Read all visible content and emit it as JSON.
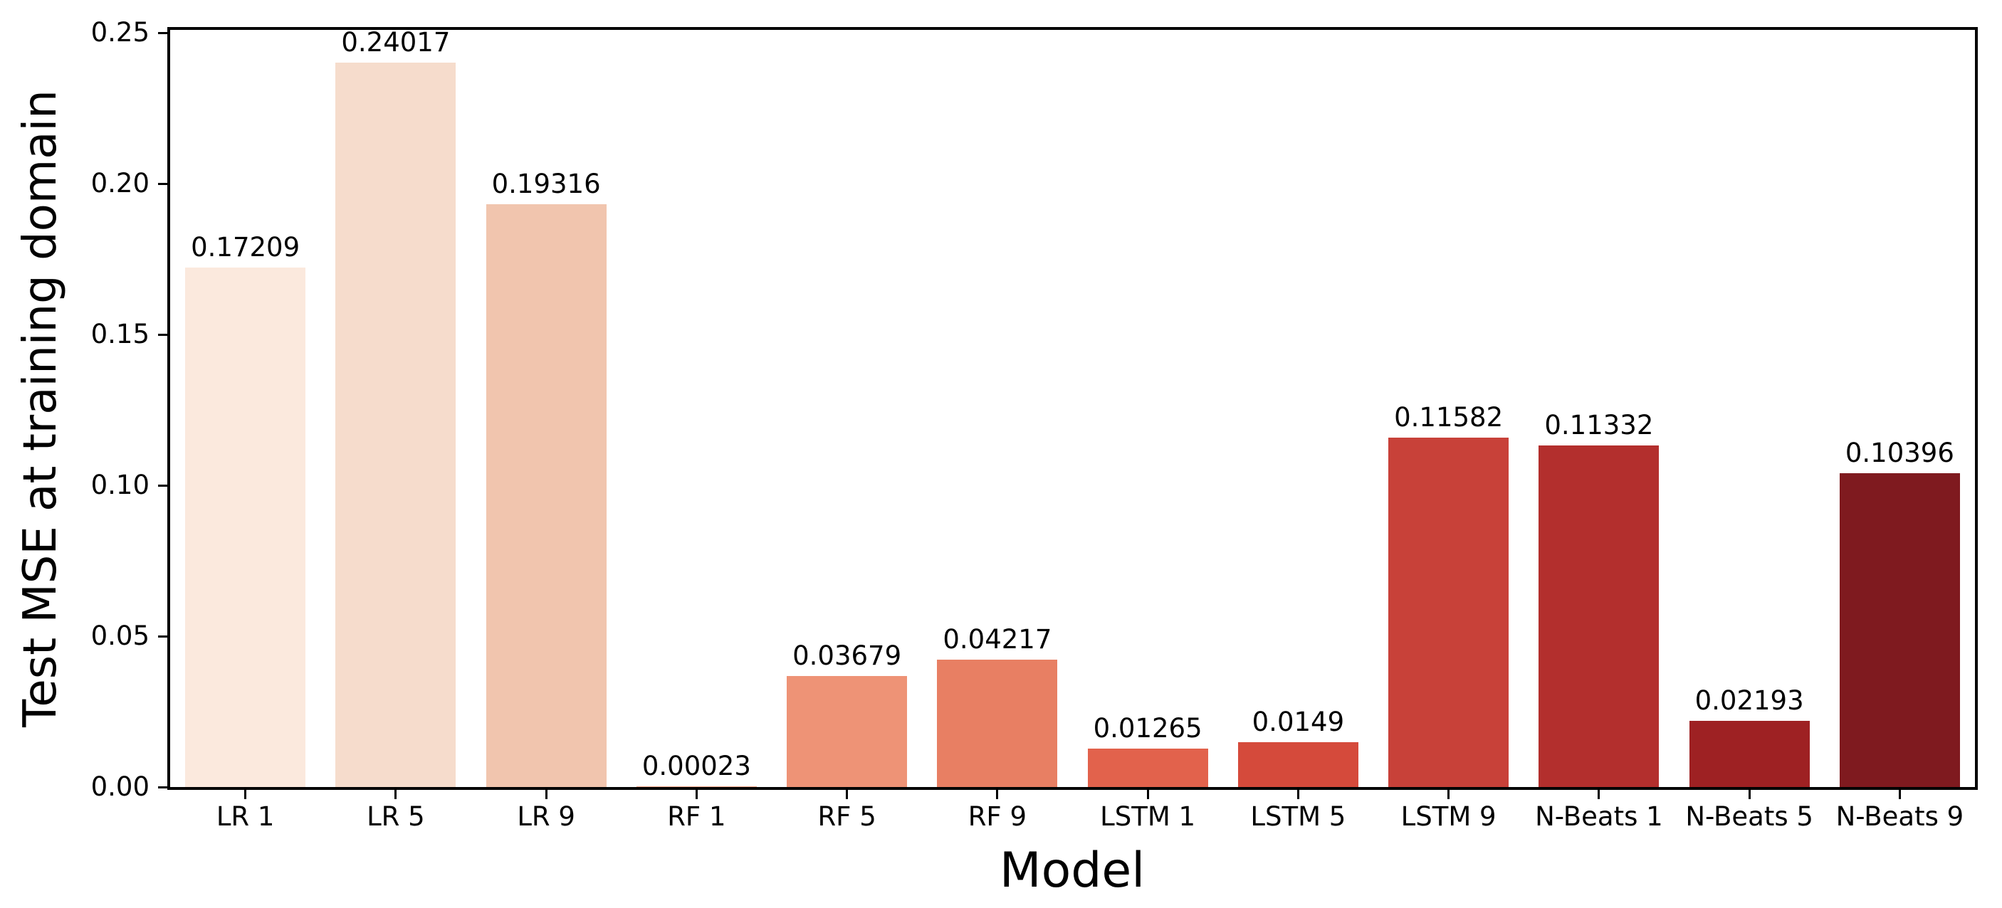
{
  "chart_data": {
    "type": "bar",
    "title": "",
    "xlabel": "Model",
    "ylabel": "Test MSE at training domain",
    "ylim": [
      0,
      0.25
    ],
    "grid": false,
    "legend": null,
    "yticks": [
      "0.00",
      "0.05",
      "0.10",
      "0.15",
      "0.20",
      "0.25"
    ],
    "categories": [
      "LR 1",
      "LR 5",
      "LR 9",
      "RF 1",
      "RF 5",
      "RF 9",
      "LSTM 1",
      "LSTM 5",
      "LSTM 9",
      "N-Beats 1",
      "N-Beats 5",
      "N-Beats 9"
    ],
    "values": [
      0.17209,
      0.24017,
      0.19316,
      0.00023,
      0.03679,
      0.04217,
      0.01265,
      0.0149,
      0.11582,
      0.11332,
      0.02193,
      0.10396
    ],
    "value_labels": [
      "0.17209",
      "0.24017",
      "0.19316",
      "0.00023",
      "0.03679",
      "0.04217",
      "0.01265",
      "0.0149",
      "0.11582",
      "0.11332",
      "0.02193",
      "0.10396"
    ],
    "bar_colors": [
      "#fbe9dd",
      "#f6dccc",
      "#f1c5ae",
      "#f5ab8e",
      "#ee9376",
      "#e87f63",
      "#e2624c",
      "#d54a3b",
      "#c84139",
      "#b32f2d",
      "#9e2123",
      "#7f1a1f"
    ],
    "bar_width_fraction": 0.8
  },
  "colors": {
    "background": "#ffffff",
    "axis": "#000000",
    "text": "#000000"
  }
}
